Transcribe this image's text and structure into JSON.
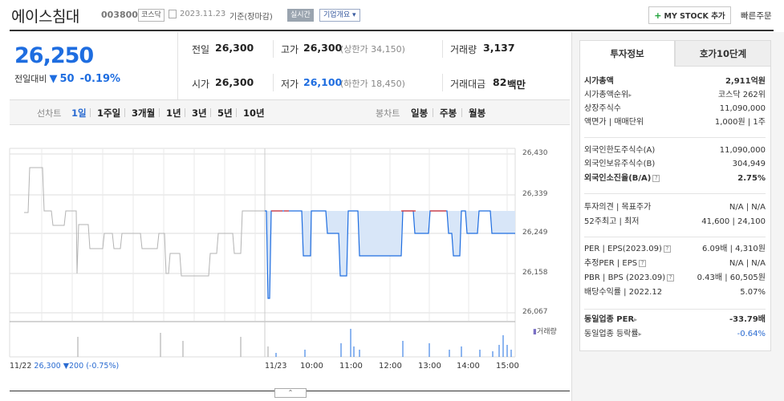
{
  "header": {
    "stock_name": "에이스침대",
    "code": "003800",
    "market": "코스닥",
    "date": "2023.11.23",
    "basis": "기준(장마감)",
    "realtime": "실시간",
    "company_overview": "기업개요",
    "my_stock": "MY STOCK 추가",
    "quick_order": "빠른주문"
  },
  "quote": {
    "price": "26,250",
    "change_label": "전일대비",
    "change_value": "50",
    "change_rate": "-0.19%",
    "prev_label": "전일",
    "prev_value": "26,300",
    "high_label": "고가",
    "high_value": "26,300",
    "upper_limit": "(상한가 34,150)",
    "volume_label": "거래량",
    "volume_value": "3,137",
    "open_label": "시가",
    "open_value": "26,300",
    "low_label": "저가",
    "low_value": "26,100",
    "lower_limit": "(하한가 18,450)",
    "amount_label": "거래대금",
    "amount_value": "82",
    "amount_unit": "백만"
  },
  "chart_tabs": {
    "line_label": "선차트",
    "periods": [
      "1일",
      "1주일",
      "3개월",
      "1년",
      "3년",
      "5년",
      "10년"
    ],
    "candle_label": "봉차트",
    "candles": [
      "일봉",
      "주봉",
      "월봉"
    ]
  },
  "chart_data": {
    "type": "line",
    "y_ticks": [
      "26,430",
      "26,339",
      "26,249",
      "26,158",
      "26,067"
    ],
    "ylim": [
      26067,
      26430
    ],
    "x_ticks": [
      "11/22",
      "11/23",
      "10:00",
      "11:00",
      "12:00",
      "13:00",
      "14:00",
      "15:00"
    ],
    "prev_day_summary": {
      "date": "11/22",
      "price": "26,300",
      "change": "▼200",
      "rate": "(-0.75%)"
    },
    "volume_label": "거래량",
    "reference_price": 26300,
    "colors": {
      "up": "#e0312e",
      "down": "#1e6de0",
      "prev": "#b3b3b3",
      "fill": "#d8e6f8"
    }
  },
  "side": {
    "tab_invest": "투자정보",
    "tab_orderbook": "호가10단계",
    "rows": [
      {
        "k": "시가총액",
        "v": "2,911억원",
        "bold": true
      },
      {
        "k": "시가총액순위",
        "v": "코스닥 262위"
      },
      {
        "k": "상장주식수",
        "v": "11,090,000"
      },
      {
        "k": "액면가 | 매매단위",
        "v": "1,000원 | 1주"
      },
      {
        "k": "외국인한도주식수(A)",
        "v": "11,090,000"
      },
      {
        "k": "외국인보유주식수(B)",
        "v": "304,949"
      },
      {
        "k": "외국인소진율(B/A)",
        "v": "2.75%",
        "bold": true
      },
      {
        "k": "투자의견 | 목표주가",
        "v": "N/A | N/A"
      },
      {
        "k": "52주최고 | 최저",
        "v": "41,600 | 24,100"
      },
      {
        "k": "PER | EPS(2023.09)",
        "v": "6.09배 | 4,310원"
      },
      {
        "k": "추정PER | EPS",
        "v": "N/A | N/A"
      },
      {
        "k": "PBR | BPS (2023.09)",
        "v": "0.43배 | 60,505원"
      },
      {
        "k": "배당수익률 | 2022.12",
        "v": "5.07%"
      },
      {
        "k": "동일업종 PER",
        "v": "-33.79배",
        "bold": true
      },
      {
        "k": "동일업종 등락률",
        "v": "-0.64%",
        "neg": true
      }
    ]
  }
}
